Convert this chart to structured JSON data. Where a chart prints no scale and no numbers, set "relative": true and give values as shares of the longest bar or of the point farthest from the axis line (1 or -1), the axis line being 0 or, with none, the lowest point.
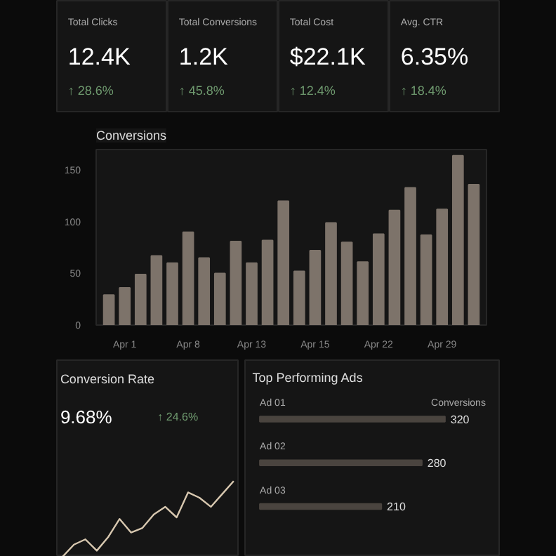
{
  "chart_data": [
    {
      "type": "other",
      "title": "Total Clicks",
      "annotations": [
        "12.4K",
        "↑ 28.6%"
      ]
    },
    {
      "type": "other",
      "title": "Total Conversions",
      "annotations": [
        "1.2K",
        "↑ 45.8%"
      ]
    },
    {
      "type": "other",
      "title": "Total Cost",
      "annotations": [
        "$22.1K",
        "↑ 12.4%"
      ]
    },
    {
      "type": "other",
      "title": "Avg. CTR",
      "annotations": [
        "6.35%",
        "↑ 18.4%"
      ]
    },
    {
      "type": "bar",
      "title": "Conversions",
      "categories": [
        null,
        "Apr 1",
        null,
        null,
        null,
        "Apr 8",
        null,
        null,
        null,
        "Apr 13",
        null,
        null,
        null,
        "Apr 15",
        null,
        null,
        null,
        "Apr 22",
        null,
        null,
        null,
        "Apr 29",
        null,
        null
      ],
      "values": [
        29,
        36,
        49,
        67,
        60,
        90,
        65,
        50,
        81,
        60,
        82,
        120,
        52,
        72,
        99,
        80,
        61,
        88,
        111,
        133,
        87,
        112,
        164,
        136
      ],
      "color": "#7d736a",
      "ylim": [
        0,
        170
      ],
      "yticks": [
        0,
        50,
        100,
        150
      ],
      "grid": false
    },
    {
      "type": "line",
      "title": "Conversion Rate",
      "annotations": [
        "9.68%",
        "↑ 24.6%"
      ],
      "relative": true,
      "color": "#d8c8b0",
      "categories": [
        null,
        null,
        null,
        null,
        null,
        null,
        null,
        null,
        null,
        null,
        null,
        null,
        null,
        null,
        null,
        null
      ],
      "values": [
        0,
        0.16,
        0.23,
        0.08,
        0.26,
        0.5,
        0.32,
        0.38,
        0.56,
        0.66,
        0.52,
        0.85,
        0.78,
        0.66,
        0.83,
        1
      ]
    },
    {
      "type": "bar",
      "orientation": "horizontal",
      "title": "Top Performing Ads",
      "annotations": [
        "Conversions"
      ],
      "categories": [
        "Ad 01",
        "Ad 02",
        "Ad 03"
      ],
      "values": [
        320,
        280,
        210
      ],
      "color": "#4a443f",
      "data_labels": true
    }
  ]
}
